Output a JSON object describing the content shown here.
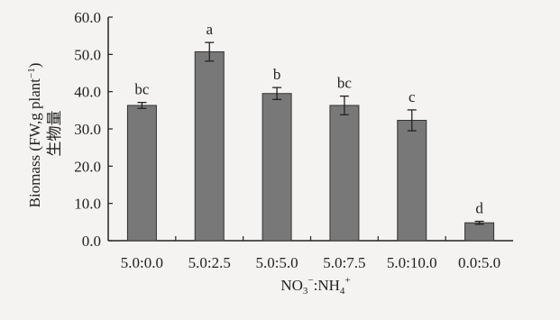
{
  "chart_data": {
    "type": "bar",
    "categories": [
      "5.0:0.0",
      "5.0:2.5",
      "5.0:5.0",
      "5.0:7.5",
      "5.0:10.0",
      "0.0:5.0"
    ],
    "values": [
      36.3,
      50.7,
      39.5,
      36.3,
      32.3,
      4.8
    ],
    "error": [
      0.8,
      2.5,
      1.6,
      2.5,
      2.8,
      0.4
    ],
    "significance_letters": [
      "bc",
      "a",
      "b",
      "bc",
      "c",
      "d"
    ],
    "ylim": [
      0,
      60
    ],
    "yticks": [
      "0.0",
      "10.0",
      "20.0",
      "30.0",
      "40.0",
      "50.0",
      "60.0"
    ],
    "ylabel_line1": "Biomass (FW,g plant",
    "ylabel_sup": "−1",
    "ylabel_close": ")",
    "ylabel_line2": "生物量",
    "xlabel": {
      "no3": "NO",
      "no3_sub": "3",
      "no3_sup": "−",
      "sep": ":",
      "nh4": "NH",
      "nh4_sub": "4",
      "nh4_sup": "+"
    },
    "bar_color": "#787878",
    "grid": false
  }
}
